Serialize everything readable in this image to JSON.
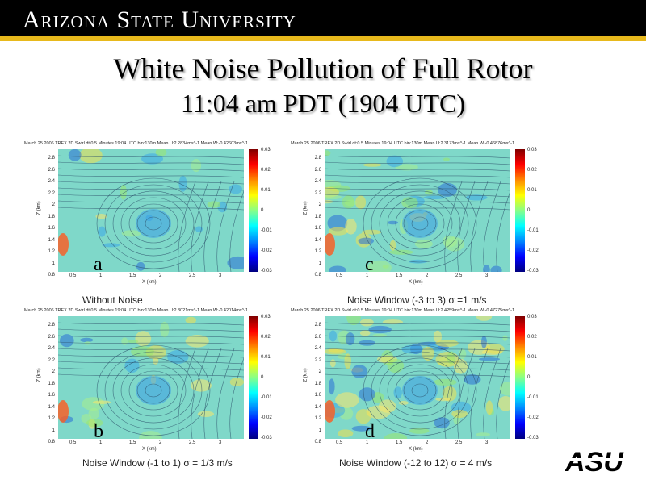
{
  "header": {
    "university": "Arizona State University"
  },
  "slide": {
    "title": "White Noise Pollution of Full Rotor",
    "subtitle": "11:04 am PDT (1904 UTC)"
  },
  "axis": {
    "y_ticks": [
      "2.8",
      "2.6",
      "2.4",
      "2.2",
      "2",
      "1.8",
      "1.6",
      "1.4",
      "1.2",
      "1",
      "0.8"
    ],
    "x_ticks": [
      "0.5",
      "1",
      "1.5",
      "2",
      "2.5",
      "3"
    ],
    "y_label": "Z (km)",
    "x_label": "X (km)",
    "colorbar_ticks": [
      "0.03",
      "0.02",
      "0.01",
      "0",
      "-0.01",
      "-0.02",
      "-0.03"
    ]
  },
  "panels": [
    {
      "letter": "a",
      "caption": "Without Noise",
      "header": "March 25 2006 TREX 2D Swirl dt:0.5 Minutes 19:04 UTC bin:130m Mean U:2.2834ms^-1 Mean W:-0.42603ms^-1"
    },
    {
      "letter": "c",
      "caption": "Noise Window (-3 to 3)  σ =1 m/s",
      "header": "March 25 2006 TREX 2D Swirl dt:0.5 Minutes 19:04 UTC bin:130m Mean U:2.3173ms^-1 Mean W:-0.46876ms^-1"
    },
    {
      "letter": "b",
      "caption": "Noise Window (-1 to 1)   σ = 1/3 m/s",
      "header": "March 25 2006 TREX 2D Swirl dt:0.5 Minutes 19:04 UTC bin:130m Mean U:2.3021ms^-1 Mean W:-0.42014ms^-1"
    },
    {
      "letter": "d",
      "caption": "Noise Window (-12 to 12) σ = 4 m/s",
      "header": "March 25 2006 TREX 2D Swirl dt:0.5 Minutes 19:04 UTC bin:130m Mean U:2.4259ms^-1 Mean W:-0.47275ms^-1"
    }
  ],
  "colors": {
    "header_bg": "#000000",
    "accent_gold": "#e8b91c",
    "field_base": "#7fd8c9"
  },
  "logo_icon": "asu-logo"
}
